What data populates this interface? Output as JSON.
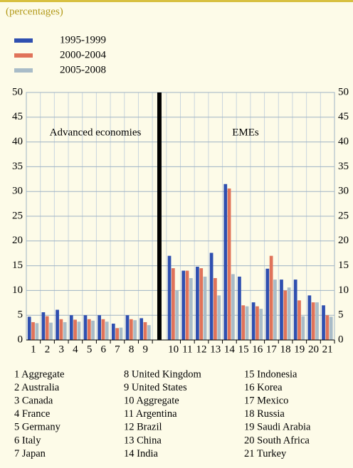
{
  "chart_data": {
    "type": "bar",
    "subtitle": "(percentages)",
    "categories": [
      "1",
      "2",
      "3",
      "4",
      "5",
      "6",
      "7",
      "8",
      "9",
      null,
      "10",
      "11",
      "12",
      "13",
      "14",
      "15",
      "16",
      "17",
      "18",
      "19",
      "20",
      "21"
    ],
    "series": [
      {
        "name": "1995-1999",
        "color": "#2f4fb0",
        "values": [
          4.7,
          5.6,
          6.1,
          5.0,
          5.0,
          5.0,
          3.3,
          5.0,
          4.4,
          null,
          17.0,
          14.0,
          14.8,
          17.6,
          31.5,
          12.8,
          7.6,
          14.4,
          12.2,
          12.2,
          9.0,
          7.0
        ]
      },
      {
        "name": "2000-2004",
        "color": "#e0735a",
        "values": [
          3.6,
          4.8,
          4.2,
          4.1,
          4.2,
          4.2,
          2.4,
          4.2,
          3.6,
          null,
          14.5,
          14.0,
          14.5,
          12.5,
          30.6,
          7.0,
          6.8,
          17.0,
          10.0,
          8.0,
          7.6,
          5.0
        ]
      },
      {
        "name": "2005-2008",
        "color": "#a9bcc8",
        "values": [
          3.4,
          3.5,
          3.6,
          3.7,
          3.9,
          3.7,
          2.5,
          4.0,
          3.0,
          null,
          10.0,
          12.5,
          12.8,
          9.0,
          13.3,
          6.8,
          6.3,
          12.2,
          10.6,
          4.8,
          7.6,
          4.7
        ]
      }
    ],
    "annotations": [
      "Advanced economies",
      "EMEs"
    ],
    "ylim": [
      0,
      50
    ],
    "yticks": [
      0,
      5,
      10,
      15,
      20,
      25,
      30,
      35,
      40,
      45,
      50
    ],
    "grid": true,
    "notes": [
      "1 Aggregate",
      "2 Australia",
      "3 Canada",
      "4 France",
      "5 Germany",
      "6 Italy",
      "7 Japan",
      "8 United Kingdom",
      "9 United States",
      "10 Aggregate",
      "11 Argentina",
      "12 Brazil",
      "13 China",
      "14 India",
      "15 Indonesia",
      "16 Korea",
      "17 Mexico",
      "18 Russia",
      "19 Saudi Arabia",
      "20 South Africa",
      "21 Turkey"
    ]
  }
}
